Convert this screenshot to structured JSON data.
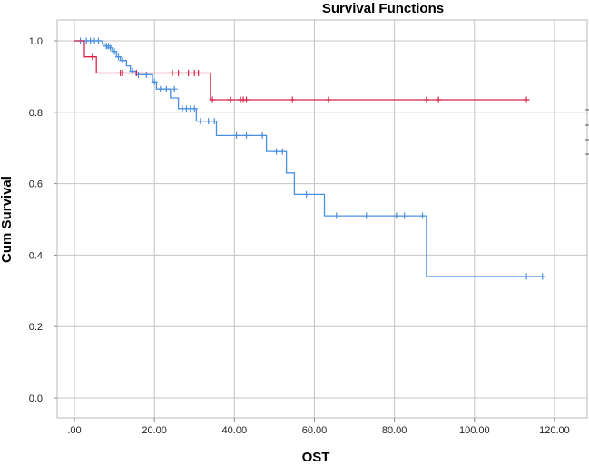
{
  "chart_data": {
    "type": "line",
    "title": "Survival Functions",
    "xlabel": "OST",
    "ylabel": "Cum Survival",
    "xlim": [
      -2,
      125
    ],
    "ylim": [
      -0.03,
      1.03
    ],
    "x_ticks": [
      0,
      20,
      40,
      60,
      80,
      100,
      120
    ],
    "x_tick_labels": [
      ".00",
      "20.00",
      "40.00",
      "60.00",
      "80.00",
      "100.00",
      "120.00"
    ],
    "y_ticks": [
      0,
      0.2,
      0.4,
      0.6,
      0.8,
      1.0
    ],
    "y_tick_labels": [
      "0.0",
      "0.2",
      "0.4",
      "0.6",
      "0.8",
      "1.0"
    ],
    "grid": true,
    "series": [
      {
        "color": "#4a90e2",
        "steps": [
          [
            0,
            1.0
          ],
          [
            7,
            0.99
          ],
          [
            8,
            0.98
          ],
          [
            9.5,
            0.97
          ],
          [
            10.5,
            0.955
          ],
          [
            11.5,
            0.945
          ],
          [
            13,
            0.93
          ],
          [
            14,
            0.915
          ],
          [
            15.5,
            0.905
          ],
          [
            19.5,
            0.885
          ],
          [
            20.5,
            0.865
          ],
          [
            24,
            0.84
          ],
          [
            26,
            0.81
          ],
          [
            30.5,
            0.775
          ],
          [
            35.5,
            0.735
          ],
          [
            48,
            0.69
          ],
          [
            53,
            0.63
          ],
          [
            55,
            0.57
          ],
          [
            62.5,
            0.51
          ],
          [
            88,
            0.34
          ],
          [
            117,
            0.34
          ]
        ],
        "censored": [
          [
            1.5,
            1.0
          ],
          [
            3,
            1.0
          ],
          [
            4,
            1.0
          ],
          [
            5,
            1.0
          ],
          [
            6,
            1.0
          ],
          [
            8,
            0.985
          ],
          [
            8.5,
            0.985
          ],
          [
            9,
            0.98
          ],
          [
            10,
            0.97
          ],
          [
            11,
            0.955
          ],
          [
            12,
            0.945
          ],
          [
            14.5,
            0.915
          ],
          [
            16,
            0.905
          ],
          [
            18,
            0.905
          ],
          [
            20,
            0.885
          ],
          [
            21.5,
            0.865
          ],
          [
            23,
            0.865
          ],
          [
            25,
            0.865
          ],
          [
            27,
            0.81
          ],
          [
            28,
            0.81
          ],
          [
            29,
            0.81
          ],
          [
            30,
            0.81
          ],
          [
            31.5,
            0.775
          ],
          [
            33.5,
            0.775
          ],
          [
            35,
            0.775
          ],
          [
            40.5,
            0.735
          ],
          [
            43,
            0.735
          ],
          [
            47,
            0.735
          ],
          [
            50.5,
            0.69
          ],
          [
            52,
            0.69
          ],
          [
            58,
            0.57
          ],
          [
            65.5,
            0.51
          ],
          [
            73,
            0.51
          ],
          [
            80.5,
            0.51
          ],
          [
            82.5,
            0.51
          ],
          [
            87,
            0.51
          ],
          [
            113,
            0.34
          ],
          [
            117,
            0.34
          ]
        ]
      },
      {
        "color": "#d6254a",
        "steps": [
          [
            0,
            1.0
          ],
          [
            2.5,
            0.955
          ],
          [
            5.5,
            0.91
          ],
          [
            34,
            0.835
          ],
          [
            113,
            0.835
          ]
        ],
        "censored": [
          [
            4.5,
            0.955
          ],
          [
            11.5,
            0.91
          ],
          [
            12,
            0.91
          ],
          [
            15.5,
            0.91
          ],
          [
            24.5,
            0.91
          ],
          [
            26,
            0.91
          ],
          [
            28.5,
            0.91
          ],
          [
            30,
            0.91
          ],
          [
            31,
            0.91
          ],
          [
            34.5,
            0.835
          ],
          [
            39,
            0.835
          ],
          [
            41.5,
            0.835
          ],
          [
            42.2,
            0.835
          ],
          [
            43,
            0.835
          ],
          [
            54.5,
            0.835
          ],
          [
            63.5,
            0.835
          ],
          [
            88,
            0.835
          ],
          [
            91,
            0.835
          ],
          [
            113,
            0.835
          ]
        ]
      }
    ]
  }
}
